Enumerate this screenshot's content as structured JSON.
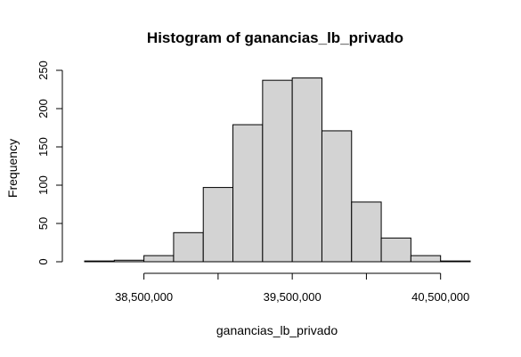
{
  "chart_data": {
    "type": "bar",
    "title": "Histogram of ganancias_lb_privado",
    "xlabel": "ganancias_lb_privado",
    "ylabel": "Frequency",
    "bin_edges": [
      38100000,
      38300000,
      38500000,
      38700000,
      38900000,
      39100000,
      39300000,
      39500000,
      39700000,
      39900000,
      40100000,
      40300000,
      40500000,
      40700000
    ],
    "values": [
      1,
      2,
      8,
      38,
      97,
      179,
      237,
      240,
      171,
      78,
      31,
      8,
      1
    ],
    "xlim": [
      38100000,
      40700000
    ],
    "ylim": [
      0,
      250
    ],
    "x_ticks": [
      38500000,
      39000000,
      39500000,
      40000000,
      40500000
    ],
    "x_tick_labels": [
      "38,500,000",
      "",
      "39,500,000",
      "",
      "40,500,000"
    ],
    "y_ticks": [
      0,
      50,
      100,
      150,
      200,
      250
    ],
    "y_tick_labels": [
      "0",
      "50",
      "100",
      "150",
      "200",
      "250"
    ],
    "bar_fill": "#d3d3d3",
    "bar_stroke": "#000000",
    "grid": false,
    "legend": "none"
  }
}
